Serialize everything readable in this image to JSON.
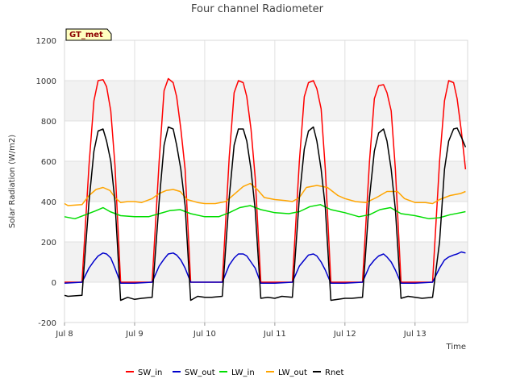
{
  "chart_data": {
    "type": "line",
    "title": "Four channel Radiometer",
    "xlabel": "Time",
    "ylabel": "Solar Radiation (W/m2)",
    "ylim": [
      -200,
      1200
    ],
    "xlim": [
      0,
      5.75
    ],
    "x_unit": "days since Jul 8",
    "yticks": [
      -200,
      0,
      200,
      400,
      600,
      800,
      1000,
      1200
    ],
    "xticks": [
      {
        "value": 0,
        "label": "Jul 8"
      },
      {
        "value": 1,
        "label": "Jul 9"
      },
      {
        "value": 2,
        "label": "Jul 10"
      },
      {
        "value": 3,
        "label": "Jul 11"
      },
      {
        "value": 4,
        "label": "Jul 12"
      },
      {
        "value": 5,
        "label": "Jul 13"
      }
    ],
    "grid": true,
    "legend_position": "bottom",
    "site_badge": "GT_met",
    "series": [
      {
        "name": "SW_in",
        "color": "#ff0000",
        "x": [
          0.0,
          0.25,
          0.35,
          0.42,
          0.48,
          0.55,
          0.6,
          0.66,
          0.72,
          0.8,
          1.0,
          1.25,
          1.35,
          1.42,
          1.48,
          1.55,
          1.6,
          1.66,
          1.72,
          1.8,
          2.0,
          2.25,
          2.35,
          2.42,
          2.48,
          2.55,
          2.6,
          2.66,
          2.72,
          2.8,
          3.0,
          3.25,
          3.35,
          3.42,
          3.48,
          3.55,
          3.6,
          3.66,
          3.72,
          3.8,
          4.0,
          4.25,
          4.35,
          4.42,
          4.48,
          4.55,
          4.6,
          4.66,
          4.72,
          4.8,
          5.0,
          5.25,
          5.35,
          5.42,
          5.48,
          5.55,
          5.6,
          5.66,
          5.72
        ],
        "y": [
          0,
          0,
          580,
          900,
          1000,
          1005,
          970,
          850,
          580,
          0,
          0,
          0,
          600,
          950,
          1010,
          990,
          920,
          760,
          560,
          0,
          0,
          0,
          620,
          940,
          1000,
          990,
          920,
          760,
          520,
          0,
          0,
          0,
          600,
          920,
          990,
          1000,
          960,
          860,
          560,
          0,
          0,
          0,
          600,
          910,
          975,
          980,
          940,
          850,
          560,
          0,
          0,
          0,
          600,
          900,
          1000,
          990,
          910,
          750,
          560
        ]
      },
      {
        "name": "SW_out",
        "color": "#0000cc",
        "x": [
          0.0,
          0.25,
          0.35,
          0.42,
          0.48,
          0.55,
          0.6,
          0.66,
          0.72,
          0.8,
          1.0,
          1.25,
          1.35,
          1.42,
          1.48,
          1.55,
          1.6,
          1.66,
          1.72,
          1.8,
          2.0,
          2.25,
          2.35,
          2.42,
          2.48,
          2.55,
          2.6,
          2.66,
          2.72,
          2.8,
          3.0,
          3.25,
          3.35,
          3.42,
          3.48,
          3.55,
          3.6,
          3.66,
          3.72,
          3.8,
          4.0,
          4.25,
          4.35,
          4.42,
          4.48,
          4.55,
          4.6,
          4.66,
          4.72,
          4.8,
          5.0,
          5.25,
          5.35,
          5.42,
          5.48,
          5.55,
          5.6,
          5.66,
          5.72
        ],
        "y": [
          -5,
          0,
          70,
          105,
          130,
          145,
          140,
          120,
          70,
          -5,
          -5,
          0,
          80,
          115,
          140,
          145,
          135,
          110,
          70,
          0,
          0,
          0,
          85,
          120,
          140,
          140,
          130,
          100,
          70,
          -5,
          -5,
          0,
          80,
          110,
          135,
          140,
          130,
          100,
          60,
          -5,
          -5,
          0,
          80,
          110,
          130,
          140,
          125,
          100,
          60,
          -5,
          -5,
          0,
          70,
          110,
          125,
          135,
          140,
          150,
          145
        ]
      },
      {
        "name": "LW_in",
        "color": "#00dd00",
        "x": [
          0.0,
          0.15,
          0.3,
          0.45,
          0.55,
          0.65,
          0.8,
          1.0,
          1.2,
          1.35,
          1.5,
          1.65,
          1.8,
          2.0,
          2.2,
          2.35,
          2.5,
          2.65,
          2.8,
          3.0,
          3.2,
          3.35,
          3.5,
          3.65,
          3.8,
          4.0,
          4.2,
          4.35,
          4.5,
          4.65,
          4.8,
          5.0,
          5.2,
          5.35,
          5.5,
          5.65,
          5.72
        ],
        "y": [
          325,
          315,
          335,
          355,
          370,
          350,
          330,
          325,
          325,
          340,
          355,
          360,
          340,
          325,
          325,
          345,
          370,
          380,
          360,
          345,
          340,
          350,
          375,
          385,
          360,
          345,
          325,
          335,
          360,
          370,
          340,
          330,
          315,
          320,
          335,
          345,
          350
        ]
      },
      {
        "name": "LW_out",
        "color": "#ffa500",
        "x": [
          0.0,
          0.05,
          0.25,
          0.35,
          0.45,
          0.55,
          0.65,
          0.72,
          0.8,
          0.9,
          1.0,
          1.1,
          1.25,
          1.35,
          1.45,
          1.55,
          1.65,
          1.75,
          1.9,
          2.0,
          2.15,
          2.3,
          2.45,
          2.55,
          2.65,
          2.75,
          2.85,
          3.0,
          3.15,
          3.25,
          3.35,
          3.45,
          3.6,
          3.75,
          3.9,
          4.0,
          4.15,
          4.3,
          4.45,
          4.6,
          4.75,
          4.85,
          5.0,
          5.15,
          5.25,
          5.35,
          5.5,
          5.65,
          5.72
        ],
        "y": [
          390,
          380,
          385,
          430,
          460,
          470,
          455,
          420,
          395,
          400,
          400,
          395,
          415,
          440,
          455,
          460,
          450,
          410,
          395,
          390,
          390,
          400,
          445,
          475,
          490,
          460,
          420,
          410,
          405,
          400,
          420,
          470,
          480,
          470,
          430,
          415,
          400,
          395,
          420,
          450,
          450,
          415,
          395,
          395,
          390,
          410,
          430,
          440,
          450
        ]
      },
      {
        "name": "Rnet",
        "color": "#000000",
        "x": [
          0.0,
          0.05,
          0.25,
          0.35,
          0.42,
          0.48,
          0.55,
          0.6,
          0.66,
          0.72,
          0.8,
          0.9,
          1.0,
          1.1,
          1.25,
          1.35,
          1.42,
          1.48,
          1.55,
          1.6,
          1.66,
          1.72,
          1.8,
          1.9,
          2.0,
          2.1,
          2.25,
          2.35,
          2.42,
          2.48,
          2.55,
          2.6,
          2.66,
          2.72,
          2.8,
          2.9,
          3.0,
          3.1,
          3.25,
          3.35,
          3.42,
          3.48,
          3.55,
          3.6,
          3.66,
          3.72,
          3.8,
          3.9,
          4.0,
          4.1,
          4.25,
          4.35,
          4.42,
          4.48,
          4.55,
          4.6,
          4.66,
          4.72,
          4.8,
          4.9,
          5.0,
          5.1,
          5.25,
          5.35,
          5.42,
          5.48,
          5.55,
          5.6,
          5.66,
          5.72
        ],
        "y": [
          -65,
          -70,
          -65,
          400,
          650,
          750,
          760,
          700,
          600,
          400,
          -90,
          -75,
          -85,
          -80,
          -75,
          400,
          680,
          770,
          760,
          680,
          560,
          380,
          -90,
          -70,
          -75,
          -75,
          -70,
          420,
          680,
          760,
          760,
          700,
          560,
          360,
          -80,
          -75,
          -80,
          -70,
          -75,
          420,
          660,
          750,
          770,
          700,
          560,
          370,
          -90,
          -85,
          -80,
          -80,
          -75,
          420,
          650,
          740,
          760,
          700,
          560,
          360,
          -80,
          -70,
          -75,
          -80,
          -75,
          200,
          560,
          700,
          760,
          765,
          720,
          670
        ]
      }
    ]
  }
}
